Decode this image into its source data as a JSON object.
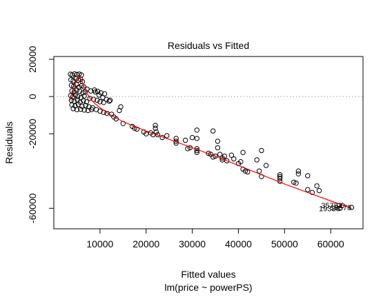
{
  "chart_data": {
    "type": "scatter",
    "title": "Residuals vs Fitted",
    "xlabel": "Fitted values",
    "subtitle": "lm(price ~ powerPS)",
    "ylabel": "Residuals",
    "xlim": [
      0,
      67000
    ],
    "ylim": [
      -71000,
      21500
    ],
    "x_ticks": [
      10000,
      20000,
      30000,
      40000,
      50000,
      60000
    ],
    "x_tick_labels": [
      "10000",
      "20000",
      "30000",
      "40000",
      "50000",
      "60000"
    ],
    "y_ticks": [
      -60000,
      -20000,
      0,
      20000
    ],
    "y_tick_labels": [
      "-60000",
      "-20000",
      "0",
      "20000"
    ],
    "reference_line_y": 0,
    "reference_line_style": "dotted",
    "grid": false,
    "point_color": "#000000",
    "smooth_color": "#ff0000",
    "points": [
      [
        3600,
        12000
      ],
      [
        4000,
        11500
      ],
      [
        4500,
        12200
      ],
      [
        5000,
        11800
      ],
      [
        5500,
        12100
      ],
      [
        6000,
        11600
      ],
      [
        3700,
        9000
      ],
      [
        4200,
        8500
      ],
      [
        4800,
        9500
      ],
      [
        5300,
        8800
      ],
      [
        5800,
        9200
      ],
      [
        6200,
        8000
      ],
      [
        3800,
        6000
      ],
      [
        4300,
        5500
      ],
      [
        4900,
        6500
      ],
      [
        5400,
        5000
      ],
      [
        6000,
        5800
      ],
      [
        6500,
        5200
      ],
      [
        3900,
        3000
      ],
      [
        4400,
        2500
      ],
      [
        5000,
        3500
      ],
      [
        5600,
        2800
      ],
      [
        6300,
        2000
      ],
      [
        6800,
        2600
      ],
      [
        3650,
        500
      ],
      [
        4100,
        -200
      ],
      [
        4700,
        800
      ],
      [
        5200,
        0
      ],
      [
        5900,
        -500
      ],
      [
        6600,
        300
      ],
      [
        3800,
        -2000
      ],
      [
        4400,
        -2500
      ],
      [
        5100,
        -1800
      ],
      [
        5700,
        -3000
      ],
      [
        6400,
        -2200
      ],
      [
        7100,
        -2800
      ],
      [
        3900,
        -4500
      ],
      [
        4600,
        -5000
      ],
      [
        5300,
        -4200
      ],
      [
        6100,
        -5200
      ],
      [
        6900,
        -4800
      ],
      [
        7600,
        -5500
      ],
      [
        4200,
        -6500
      ],
      [
        5000,
        -7000
      ],
      [
        5800,
        -6800
      ],
      [
        6600,
        -7200
      ],
      [
        7400,
        -7500
      ],
      [
        8200,
        -7000
      ],
      [
        7200,
        4000
      ],
      [
        8000,
        3000
      ],
      [
        8800,
        3500
      ],
      [
        9500,
        2800
      ],
      [
        10200,
        2000
      ],
      [
        11000,
        1500
      ],
      [
        7800,
        -1000
      ],
      [
        8600,
        -1500
      ],
      [
        9400,
        -2000
      ],
      [
        10000,
        -2800
      ],
      [
        10800,
        -3200
      ],
      [
        8400,
        -6000
      ],
      [
        9200,
        -7000
      ],
      [
        10000,
        -7800
      ],
      [
        10800,
        -8500
      ],
      [
        11500,
        -9000
      ],
      [
        9000,
        2500
      ],
      [
        9800,
        800
      ],
      [
        10600,
        -500
      ],
      [
        11400,
        -1500
      ],
      [
        12000,
        -2500
      ],
      [
        12200,
        -2000
      ],
      [
        12500,
        -9500
      ],
      [
        13000,
        -11000
      ],
      [
        13500,
        -12000
      ],
      [
        14200,
        -7500
      ],
      [
        14500,
        -5500
      ],
      [
        15000,
        -14500
      ],
      [
        17000,
        -16000
      ],
      [
        17500,
        -17000
      ],
      [
        18000,
        -17500
      ],
      [
        19500,
        -19000
      ],
      [
        20000,
        -20000
      ],
      [
        21000,
        -19500
      ],
      [
        21500,
        -20500
      ],
      [
        22000,
        -15500
      ],
      [
        22000,
        -17000
      ],
      [
        22200,
        -19000
      ],
      [
        22500,
        -20500
      ],
      [
        23500,
        -22000
      ],
      [
        24500,
        -21000
      ],
      [
        26500,
        -22500
      ],
      [
        26500,
        -24000
      ],
      [
        26500,
        -25000
      ],
      [
        28500,
        -23500
      ],
      [
        29000,
        -28000
      ],
      [
        29500,
        -27500
      ],
      [
        30000,
        -22000
      ],
      [
        31000,
        -18000
      ],
      [
        31000,
        -22500
      ],
      [
        31000,
        -28000
      ],
      [
        31000,
        -29000
      ],
      [
        31000,
        -30000
      ],
      [
        33500,
        -30500
      ],
      [
        34000,
        -31000
      ],
      [
        34500,
        -32500
      ],
      [
        34500,
        -18500
      ],
      [
        35000,
        -32000
      ],
      [
        35500,
        -27500
      ],
      [
        35500,
        -24000
      ],
      [
        36000,
        -31000
      ],
      [
        36500,
        -33000
      ],
      [
        36500,
        -34000
      ],
      [
        37000,
        -32000
      ],
      [
        37500,
        -34500
      ],
      [
        38500,
        -31500
      ],
      [
        39000,
        -33500
      ],
      [
        40000,
        -36000
      ],
      [
        40500,
        -35000
      ],
      [
        41000,
        -30000
      ],
      [
        41000,
        -39000
      ],
      [
        41500,
        -40000
      ],
      [
        42000,
        -40500
      ],
      [
        44000,
        -34000
      ],
      [
        44500,
        -40000
      ],
      [
        45000,
        -43000
      ],
      [
        45000,
        -29000
      ],
      [
        46000,
        -37000
      ],
      [
        49000,
        -42000
      ],
      [
        49000,
        -43000
      ],
      [
        49000,
        -44000
      ],
      [
        49000,
        -45500
      ],
      [
        52000,
        -46000
      ],
      [
        52500,
        -46500
      ],
      [
        53000,
        -40000
      ],
      [
        53000,
        -41500
      ],
      [
        55000,
        -50000
      ],
      [
        55000,
        -42500
      ],
      [
        56000,
        -51500
      ],
      [
        57000,
        -48000
      ],
      [
        57500,
        -50500
      ],
      [
        62000,
        -60000
      ],
      [
        62500,
        -58500
      ],
      [
        64500,
        -59500
      ]
    ],
    "smooth_x": [
      3500,
      4000,
      4500,
      5000,
      5500,
      6000,
      6500,
      7000,
      8000,
      9000,
      10000,
      12000,
      15000,
      20000,
      25000,
      30000,
      35000,
      40000,
      45000,
      50000,
      55000,
      60000,
      64500
    ],
    "smooth_y": [
      -2000,
      2000,
      6000,
      9500,
      10500,
      9000,
      5500,
      2500,
      -1500,
      -4000,
      -6000,
      -9500,
      -13500,
      -18500,
      -23000,
      -27500,
      -32000,
      -37000,
      -42000,
      -47000,
      -51500,
      -56000,
      -60000
    ],
    "point_labels": [
      {
        "x": 62000,
        "y": -60000,
        "text": "19336"
      },
      {
        "x": 62500,
        "y": -58500,
        "text": "35783"
      },
      {
        "x": 64500,
        "y": -59500,
        "text": "16578"
      }
    ]
  }
}
